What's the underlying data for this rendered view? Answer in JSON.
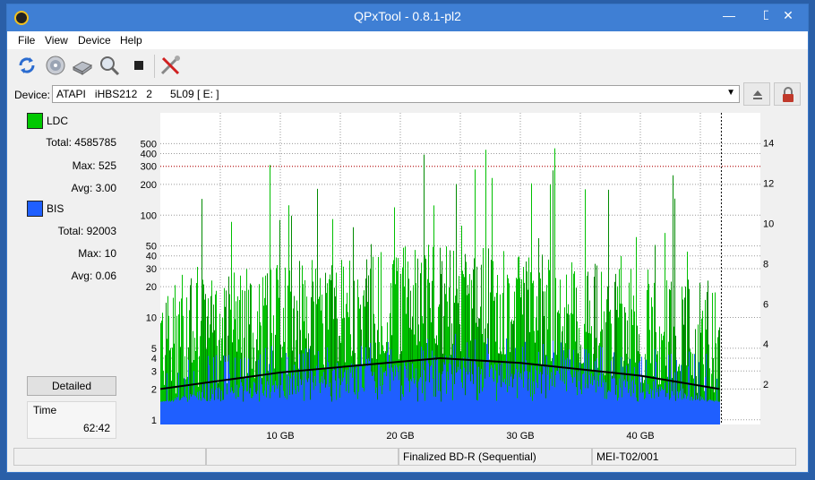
{
  "window": {
    "title": "QPxTool - 0.8.1-pl2",
    "min_symbol": "—",
    "max_symbol": "☐",
    "close_symbol": "✕"
  },
  "menu": {
    "items": [
      "File",
      "View",
      "Device",
      "Help"
    ]
  },
  "toolbar": {
    "icons": [
      "refresh-icon",
      "media-info-icon",
      "scan-drive-icon",
      "zoom-icon",
      "stop-icon",
      "settings-icon"
    ]
  },
  "device": {
    "label": "Device:",
    "value": "ATAPI   iHBS212   2      5L09 [ E: ]"
  },
  "stats": {
    "ldc": {
      "label": "LDC",
      "color": "#00c800",
      "total_label": "Total:",
      "total": "4585785",
      "max_label": "Max:",
      "max": "525",
      "avg_label": "Avg:",
      "avg": "3.00"
    },
    "bis": {
      "label": "BIS",
      "color": "#1f5fff",
      "total_label": "Total:",
      "total": "92003",
      "max_label": "Max:",
      "max": "10",
      "avg_label": "Avg:",
      "avg": "0.06"
    },
    "detailed_label": "Detailed",
    "time_label": "Time",
    "time_value": "62:42"
  },
  "status": {
    "disc_type": "Finalized BD-R (Sequential)",
    "media_id": "MEI-T02/001"
  },
  "chart_data": {
    "type": "bar",
    "y_scale": "log",
    "x_ticks": [
      "10 GB",
      "20 GB",
      "30 GB",
      "40 GB"
    ],
    "x_tick_values": [
      10,
      20,
      30,
      40
    ],
    "x_range": [
      0,
      50
    ],
    "capacity_end_gb": 46.6,
    "y_ticks": [
      1,
      2,
      3,
      4,
      5,
      10,
      20,
      30,
      40,
      50,
      100,
      200,
      300,
      400,
      500
    ],
    "y_range": [
      0.9,
      1000
    ],
    "y2_ticks": [
      2,
      4,
      6,
      8,
      10,
      12,
      14
    ],
    "y2_range": [
      0,
      15.5
    ],
    "red_line_y": 300,
    "series": [
      {
        "name": "LDC",
        "color": "#00c000",
        "values_summary": {
          "max": 525,
          "avg": 3.0
        }
      },
      {
        "name": "BIS",
        "color": "#1f5fff",
        "values_summary": {
          "max": 10,
          "avg": 0.06
        }
      }
    ],
    "speed_curve": {
      "color": "#000000",
      "points": [
        [
          0,
          2.0
        ],
        [
          10,
          2.9
        ],
        [
          20,
          3.7
        ],
        [
          23.3,
          4.0
        ],
        [
          30,
          3.6
        ],
        [
          40,
          2.7
        ],
        [
          46.6,
          2.0
        ]
      ]
    }
  }
}
